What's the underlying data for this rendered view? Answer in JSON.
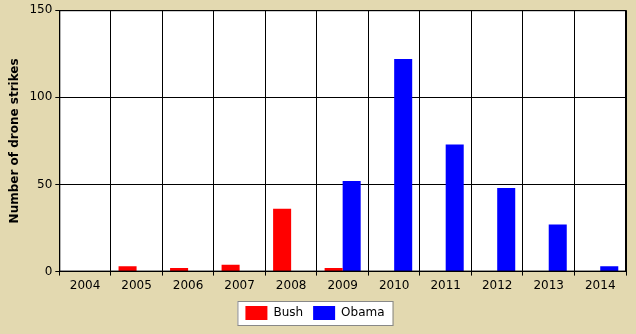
{
  "chart_data": {
    "type": "bar",
    "categories": [
      "2004",
      "2005",
      "2006",
      "2007",
      "2008",
      "2009",
      "2010",
      "2011",
      "2012",
      "2013",
      "2014"
    ],
    "series": [
      {
        "name": "Bush",
        "color": "#ff0000",
        "values": [
          0,
          3,
          2,
          4,
          36,
          2,
          null,
          null,
          null,
          null,
          null
        ]
      },
      {
        "name": "Obama",
        "color": "#0000ff",
        "values": [
          null,
          null,
          null,
          null,
          null,
          52,
          122,
          73,
          48,
          27,
          3
        ]
      }
    ],
    "y_label": "Number of drone strikes",
    "ylim": [
      0,
      150
    ],
    "yticks": [
      0,
      50,
      100,
      150
    ],
    "grid": true,
    "legend": "bottom"
  }
}
